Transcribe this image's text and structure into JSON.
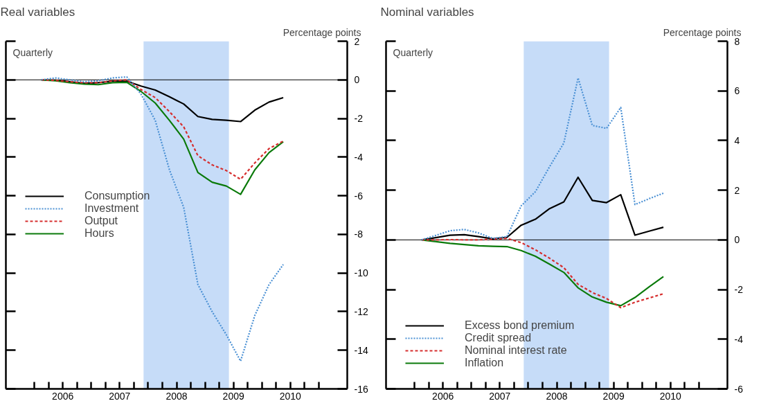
{
  "chart_data": [
    {
      "type": "line",
      "title": "Real variables",
      "ylabel": "Percentage points",
      "annotations": [
        "Quarterly"
      ],
      "x": [
        2006.125,
        2006.375,
        2006.625,
        2006.875,
        2007.125,
        2007.375,
        2007.625,
        2007.875,
        2008.125,
        2008.375,
        2008.625,
        2008.875,
        2009.125,
        2009.375,
        2009.625,
        2009.875,
        2010.125,
        2010.375
      ],
      "series": [
        {
          "name": "Consumption",
          "color": "#000000",
          "line_style": "solid",
          "values": [
            0,
            -0.02,
            -0.1,
            -0.18,
            -0.15,
            -0.07,
            -0.07,
            -0.32,
            -0.53,
            -0.88,
            -1.25,
            -1.9,
            -2.05,
            -2.09,
            -2.16,
            -1.57,
            -1.15,
            -0.92
          ]
        },
        {
          "name": "Investment",
          "color": "#4a90d4",
          "line_style": "dotted",
          "values": [
            0,
            0.1,
            0,
            -0.1,
            -0.05,
            0.1,
            0.15,
            -0.74,
            -2.1,
            -4.66,
            -6.6,
            -10.6,
            -12.0,
            -13.2,
            -14.56,
            -12.2,
            -10.6,
            -9.56
          ]
        },
        {
          "name": "Output",
          "color": "#d62d2d",
          "line_style": "dashed",
          "values": [
            0,
            -0.03,
            -0.1,
            -0.15,
            -0.15,
            -0.05,
            0,
            -0.5,
            -0.92,
            -1.65,
            -2.43,
            -3.93,
            -4.4,
            -4.7,
            -5.15,
            -4.3,
            -3.56,
            -3.17
          ]
        },
        {
          "name": "Hours",
          "color": "#0a7a0a",
          "line_style": "solid",
          "values": [
            0,
            -0.05,
            -0.15,
            -0.22,
            -0.25,
            -0.15,
            -0.13,
            -0.6,
            -1.2,
            -2.1,
            -3.07,
            -4.8,
            -5.3,
            -5.5,
            -5.93,
            -4.66,
            -3.77,
            -3.2
          ]
        }
      ],
      "xlim": [
        2005.5,
        2011.5
      ],
      "xticks": [
        {
          "value": 2006,
          "label": null
        },
        {
          "value": 2006.25,
          "label": null
        },
        {
          "value": 2006.5,
          "label": "2006"
        },
        {
          "value": 2006.75,
          "label": null
        },
        {
          "value": 2007,
          "label": null
        },
        {
          "value": 2007.25,
          "label": null
        },
        {
          "value": 2007.5,
          "label": "2007"
        },
        {
          "value": 2007.75,
          "label": null
        },
        {
          "value": 2008,
          "label": null
        },
        {
          "value": 2008.25,
          "label": null
        },
        {
          "value": 2008.5,
          "label": "2008"
        },
        {
          "value": 2008.75,
          "label": null
        },
        {
          "value": 2009,
          "label": null
        },
        {
          "value": 2009.25,
          "label": null
        },
        {
          "value": 2009.5,
          "label": "2009"
        },
        {
          "value": 2009.75,
          "label": null
        },
        {
          "value": 2010,
          "label": null
        },
        {
          "value": 2010.25,
          "label": null
        },
        {
          "value": 2010.5,
          "label": "2010"
        },
        {
          "value": 2010.75,
          "label": null
        },
        {
          "value": 2011,
          "label": null
        }
      ],
      "ylim": [
        -16,
        2
      ],
      "yticks": [
        -16,
        -14,
        -12,
        -10,
        -8,
        -6,
        -4,
        -2,
        0,
        2
      ],
      "bands": [
        {
          "axis": "x",
          "from": 2007.92,
          "to": 2009.42,
          "color": "#c6dcf8"
        }
      ],
      "ref_lines": [
        {
          "axis": "y",
          "value": 0,
          "color": "#000000"
        }
      ],
      "grid": false,
      "legend": "center left"
    },
    {
      "type": "line",
      "title": "Nominal variables",
      "ylabel": "Percentage points",
      "annotations": [
        "Quarterly"
      ],
      "x": [
        2006.125,
        2006.375,
        2006.625,
        2006.875,
        2007.125,
        2007.375,
        2007.625,
        2007.875,
        2008.125,
        2008.375,
        2008.625,
        2008.875,
        2009.125,
        2009.375,
        2009.625,
        2009.875,
        2010.125,
        2010.375
      ],
      "series": [
        {
          "name": "Excess bond premium",
          "color": "#000000",
          "line_style": "solid",
          "values": [
            0,
            0.09,
            0.19,
            0.21,
            0.13,
            0.04,
            0.1,
            0.59,
            0.83,
            1.26,
            1.53,
            2.52,
            1.59,
            1.5,
            1.82,
            0.19,
            0.35,
            0.51
          ]
        },
        {
          "name": "Credit spread",
          "color": "#4a90d4",
          "line_style": "dotted",
          "values": [
            0,
            0.18,
            0.37,
            0.42,
            0.28,
            0.06,
            0.13,
            1.37,
            1.94,
            2.95,
            3.9,
            6.52,
            4.61,
            4.49,
            5.33,
            1.42,
            1.66,
            1.88
          ]
        },
        {
          "name": "Nominal interest rate",
          "color": "#d62d2d",
          "line_style": "dashed",
          "values": [
            0,
            0,
            0.01,
            0,
            0,
            0.03,
            0.06,
            -0.11,
            -0.4,
            -0.74,
            -1.12,
            -1.79,
            -2.12,
            -2.36,
            -2.73,
            -2.51,
            -2.34,
            -2.17
          ]
        },
        {
          "name": "Inflation",
          "color": "#0a7a0a",
          "line_style": "solid",
          "values": [
            0,
            -0.07,
            -0.14,
            -0.19,
            -0.24,
            -0.26,
            -0.27,
            -0.43,
            -0.66,
            -0.98,
            -1.31,
            -1.93,
            -2.3,
            -2.51,
            -2.65,
            -2.32,
            -1.89,
            -1.48
          ]
        }
      ],
      "xlim": [
        2005.5,
        2011.5
      ],
      "xticks": [
        {
          "value": 2006,
          "label": null
        },
        {
          "value": 2006.25,
          "label": null
        },
        {
          "value": 2006.5,
          "label": "2006"
        },
        {
          "value": 2006.75,
          "label": null
        },
        {
          "value": 2007,
          "label": null
        },
        {
          "value": 2007.25,
          "label": null
        },
        {
          "value": 2007.5,
          "label": "2007"
        },
        {
          "value": 2007.75,
          "label": null
        },
        {
          "value": 2008,
          "label": null
        },
        {
          "value": 2008.25,
          "label": null
        },
        {
          "value": 2008.5,
          "label": "2008"
        },
        {
          "value": 2008.75,
          "label": null
        },
        {
          "value": 2009,
          "label": null
        },
        {
          "value": 2009.25,
          "label": null
        },
        {
          "value": 2009.5,
          "label": "2009"
        },
        {
          "value": 2009.75,
          "label": null
        },
        {
          "value": 2010,
          "label": null
        },
        {
          "value": 2010.25,
          "label": null
        },
        {
          "value": 2010.5,
          "label": "2010"
        },
        {
          "value": 2010.75,
          "label": null
        },
        {
          "value": 2011,
          "label": null
        }
      ],
      "ylim": [
        -6,
        8
      ],
      "yticks": [
        -6,
        -4,
        -2,
        0,
        2,
        4,
        6,
        8
      ],
      "bands": [
        {
          "axis": "x",
          "from": 2007.92,
          "to": 2009.42,
          "color": "#c6dcf8"
        }
      ],
      "ref_lines": [
        {
          "axis": "y",
          "value": 0,
          "color": "#000000"
        }
      ],
      "grid": false,
      "legend": "bottom left"
    }
  ]
}
